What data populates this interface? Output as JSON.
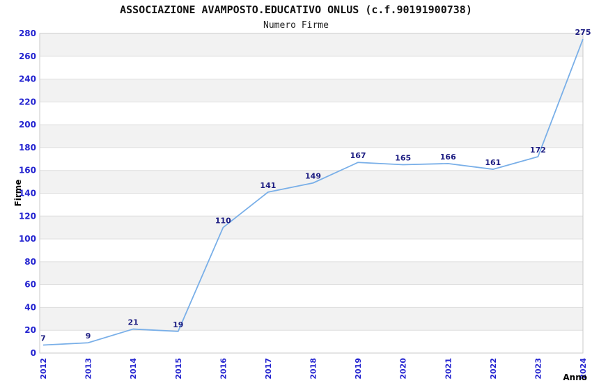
{
  "header": {
    "title": "ASSOCIAZIONE AVAMPOSTO.EDUCATIVO ONLUS (c.f.90191900738)",
    "subtitle": "Numero Firme"
  },
  "chart_data": {
    "type": "line",
    "title": "ASSOCIAZIONE AVAMPOSTO.EDUCATIVO ONLUS (c.f.90191900738)",
    "subtitle": "Numero Firme",
    "categories": [
      "2012",
      "2013",
      "2014",
      "2015",
      "2016",
      "2017",
      "2018",
      "2019",
      "2020",
      "2021",
      "2022",
      "2023",
      "2024"
    ],
    "values": [
      7,
      9,
      21,
      19,
      110,
      141,
      149,
      167,
      165,
      166,
      161,
      172,
      275
    ],
    "xlabel": "Anno",
    "ylabel": "Firme",
    "ylim": [
      0,
      280
    ],
    "ytick_step": 20,
    "grid": true,
    "legend_position": "none",
    "colors": {
      "line": "#79afe8",
      "tick_label": "#2323d0",
      "value_label": "#1d1d82",
      "band": "#f2f2f2",
      "band_alt": "#ffffff",
      "grid": "#dddddd",
      "border": "#c9c9c9",
      "background": "#ffffff"
    }
  }
}
